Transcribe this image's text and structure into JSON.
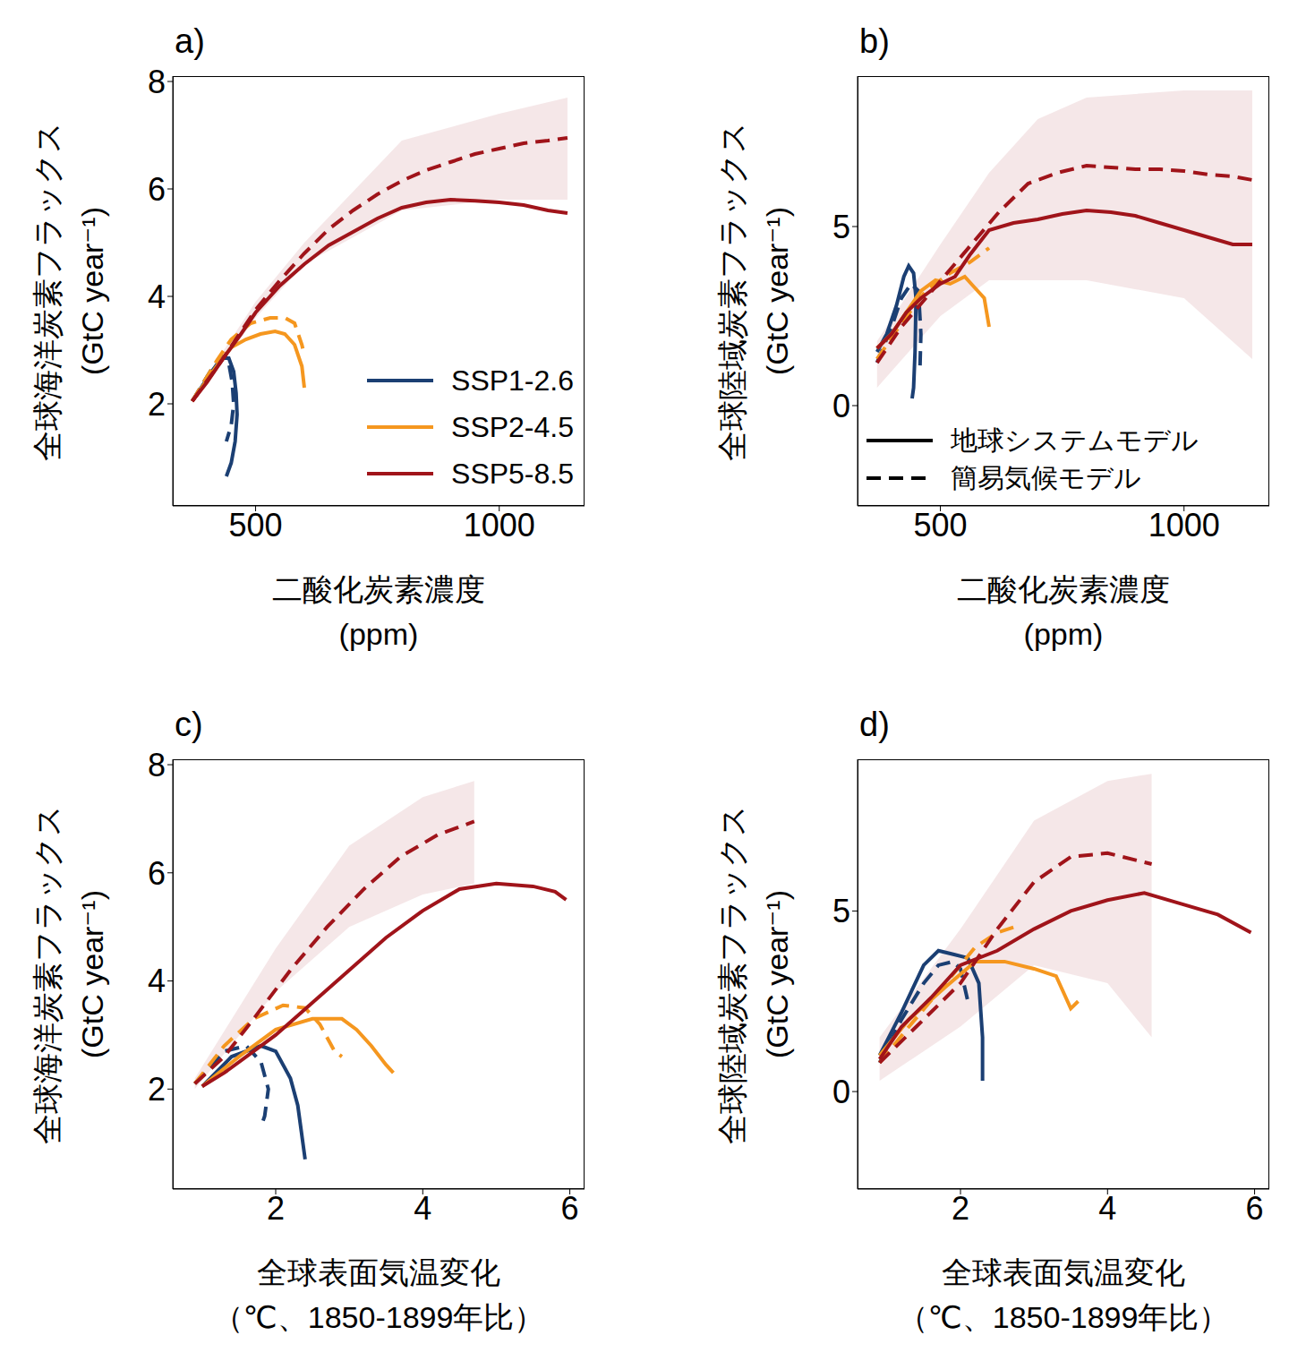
{
  "chart_data": [
    {
      "type": "line",
      "title": "a)",
      "xlabel": [
        "二酸化炭素濃度",
        "(ppm)"
      ],
      "ylabel": [
        "全球海洋炭素フラックス",
        "(GtC year⁻¹)"
      ],
      "xlim": [
        330,
        1175
      ],
      "ylim": [
        0.1,
        8.1
      ],
      "xticks": [
        500,
        1000
      ],
      "yticks": [
        2,
        4,
        6,
        8
      ],
      "legend": "lower right",
      "series": [
        {
          "name": "SSP1-2.6",
          "color": "#1b3f73",
          "line_style": "solid",
          "x": [
            370,
            410,
            430,
            445,
            455,
            460,
            462,
            458,
            450,
            440
          ],
          "values": [
            2.05,
            2.6,
            2.85,
            2.85,
            2.6,
            2.2,
            1.8,
            1.3,
            0.9,
            0.65
          ]
        },
        {
          "name": "SSP1-2.6",
          "color": "#1b3f73",
          "line_style": "dashed",
          "x": [
            370,
            410,
            430,
            445,
            452,
            455,
            450,
            440
          ],
          "values": [
            2.05,
            2.65,
            2.9,
            2.75,
            2.4,
            2.0,
            1.6,
            1.3
          ]
        },
        {
          "name": "SSP2-4.5",
          "color": "#f5971f",
          "line_style": "solid",
          "x": [
            370,
            420,
            450,
            480,
            510,
            540,
            560,
            580,
            595,
            600
          ],
          "values": [
            2.05,
            2.7,
            3.05,
            3.2,
            3.3,
            3.35,
            3.3,
            3.1,
            2.7,
            2.3
          ]
        },
        {
          "name": "SSP2-4.5",
          "color": "#f5971f",
          "line_style": "dashed",
          "x": [
            370,
            420,
            450,
            490,
            530,
            560,
            580,
            595,
            600
          ],
          "values": [
            2.05,
            2.8,
            3.2,
            3.5,
            3.6,
            3.6,
            3.5,
            3.1,
            2.9
          ]
        },
        {
          "name": "SSP5-8.5",
          "color": "#a0141a",
          "line_style": "solid",
          "x": [
            370,
            400,
            430,
            470,
            500,
            550,
            600,
            650,
            700,
            750,
            800,
            850,
            900,
            950,
            1000,
            1050,
            1100,
            1140
          ],
          "values": [
            2.05,
            2.4,
            2.8,
            3.3,
            3.7,
            4.2,
            4.6,
            4.95,
            5.2,
            5.45,
            5.65,
            5.75,
            5.8,
            5.78,
            5.75,
            5.7,
            5.6,
            5.55
          ]
        },
        {
          "name": "SSP5-8.5",
          "color": "#a0141a",
          "line_style": "dashed",
          "x": [
            370,
            430,
            500,
            550,
            600,
            650,
            700,
            750,
            800,
            850,
            900,
            950,
            1000,
            1050,
            1100,
            1140
          ],
          "values": [
            2.05,
            2.8,
            3.75,
            4.3,
            4.8,
            5.25,
            5.6,
            5.9,
            6.15,
            6.35,
            6.5,
            6.65,
            6.75,
            6.85,
            6.9,
            6.95
          ],
          "band_x": [
            370,
            500,
            600,
            800,
            1000,
            1140
          ],
          "band_low": [
            2.0,
            3.6,
            4.6,
            5.6,
            5.8,
            5.8
          ],
          "band_high": [
            2.1,
            3.9,
            5.0,
            6.9,
            7.4,
            7.7
          ]
        }
      ]
    },
    {
      "type": "line",
      "title": "b)",
      "xlabel": [
        "二酸化炭素濃度",
        "(ppm)"
      ],
      "ylabel": [
        "全球陸域炭素フラックス",
        "(GtC year⁻¹)"
      ],
      "xlim": [
        330,
        1175
      ],
      "ylim": [
        -2.8,
        9.2
      ],
      "xticks": [
        500,
        1000
      ],
      "yticks": [
        0,
        5
      ],
      "legend": "lower left",
      "series": [
        {
          "name": "SSP1-2.6",
          "model": "地球システムモデル",
          "color": "#1b3f73",
          "line_style": "solid",
          "x": [
            370,
            390,
            410,
            425,
            435,
            445,
            450,
            448,
            445,
            442
          ],
          "values": [
            1.5,
            2.0,
            2.8,
            3.6,
            3.9,
            3.7,
            3.0,
            1.5,
            0.5,
            0.2
          ]
        },
        {
          "name": "SSP1-2.6",
          "model": "簡易気候モデル",
          "color": "#1b3f73",
          "line_style": "dashed",
          "x": [
            370,
            400,
            420,
            440,
            455,
            460,
            458
          ],
          "values": [
            1.2,
            2.2,
            3.0,
            3.4,
            3.2,
            2.0,
            1.0
          ]
        },
        {
          "name": "SSP2-4.5",
          "model": "地球システムモデル",
          "color": "#f5971f",
          "line_style": "solid",
          "x": [
            370,
            400,
            430,
            460,
            490,
            520,
            550,
            570,
            590,
            600
          ],
          "values": [
            1.6,
            2.0,
            2.6,
            3.2,
            3.5,
            3.4,
            3.6,
            3.3,
            3.0,
            2.2
          ]
        },
        {
          "name": "SSP2-4.5",
          "model": "簡易気候モデル",
          "color": "#f5971f",
          "line_style": "dashed",
          "x": [
            370,
            420,
            470,
            520,
            560,
            600
          ],
          "values": [
            1.3,
            2.3,
            3.2,
            3.7,
            4.0,
            4.4
          ]
        },
        {
          "name": "SSP5-8.5",
          "model": "地球システムモデル",
          "color": "#a0141a",
          "line_style": "solid",
          "x": [
            370,
            400,
            430,
            460,
            500,
            530,
            560,
            600,
            650,
            700,
            750,
            800,
            850,
            900,
            950,
            1000,
            1050,
            1100,
            1140
          ],
          "values": [
            1.6,
            2.0,
            2.6,
            3.0,
            3.4,
            3.6,
            4.2,
            4.9,
            5.1,
            5.2,
            5.35,
            5.45,
            5.4,
            5.3,
            5.1,
            4.9,
            4.7,
            4.5,
            4.5
          ]
        },
        {
          "name": "SSP5-8.5",
          "model": "簡易気候モデル",
          "color": "#a0141a",
          "line_style": "dashed",
          "x": [
            370,
            420,
            470,
            520,
            570,
            620,
            680,
            740,
            800,
            850,
            900,
            950,
            1000,
            1050,
            1100,
            1140
          ],
          "values": [
            1.2,
            2.2,
            3.0,
            3.8,
            4.6,
            5.4,
            6.2,
            6.5,
            6.7,
            6.65,
            6.6,
            6.6,
            6.55,
            6.45,
            6.4,
            6.3
          ],
          "band_x": [
            370,
            500,
            600,
            700,
            800,
            1000,
            1140
          ],
          "band_low": [
            0.5,
            2.5,
            3.5,
            3.5,
            3.5,
            3.0,
            1.3
          ],
          "band_high": [
            1.8,
            4.5,
            6.5,
            8.0,
            8.6,
            8.8,
            8.8
          ]
        }
      ]
    },
    {
      "type": "line",
      "title": "c)",
      "xlabel": [
        "全球表面気温変化",
        "（℃、1850-1899年比）"
      ],
      "ylabel": [
        "全球海洋炭素フラックス",
        "(GtC year⁻¹)"
      ],
      "xlim": [
        0.6,
        6.2
      ],
      "ylim": [
        0.15,
        8.1
      ],
      "xticks": [
        2,
        4,
        6
      ],
      "yticks": [
        2,
        4,
        6,
        8
      ],
      "series": [
        {
          "name": "SSP1-2.6",
          "color": "#1b3f73",
          "line_style": "solid",
          "x": [
            1.0,
            1.4,
            1.8,
            2.0,
            2.2,
            2.3,
            2.35,
            2.4
          ],
          "values": [
            2.05,
            2.6,
            2.8,
            2.7,
            2.2,
            1.7,
            1.2,
            0.7
          ]
        },
        {
          "name": "SSP1-2.6",
          "color": "#1b3f73",
          "line_style": "dashed",
          "x": [
            0.9,
            1.3,
            1.6,
            1.8,
            1.9,
            1.85,
            1.8
          ],
          "values": [
            2.1,
            2.7,
            2.8,
            2.5,
            2.0,
            1.5,
            1.3
          ]
        },
        {
          "name": "SSP2-4.5",
          "color": "#f5971f",
          "line_style": "solid",
          "x": [
            1.0,
            1.5,
            2.0,
            2.5,
            2.9,
            3.1,
            3.3,
            3.5,
            3.6
          ],
          "values": [
            2.05,
            2.6,
            3.1,
            3.3,
            3.3,
            3.1,
            2.8,
            2.45,
            2.3
          ]
        },
        {
          "name": "SSP2-4.5",
          "color": "#f5971f",
          "line_style": "dashed",
          "x": [
            0.9,
            1.3,
            1.7,
            2.1,
            2.4,
            2.6,
            2.8,
            2.9
          ],
          "values": [
            2.1,
            2.8,
            3.3,
            3.55,
            3.5,
            3.2,
            2.7,
            2.6
          ]
        },
        {
          "name": "SSP5-8.5",
          "color": "#a0141a",
          "line_style": "solid",
          "x": [
            1.0,
            1.3,
            1.6,
            2.0,
            2.5,
            3.0,
            3.5,
            4.0,
            4.5,
            5.0,
            5.5,
            5.8,
            5.95
          ],
          "values": [
            2.05,
            2.3,
            2.6,
            3.0,
            3.6,
            4.2,
            4.8,
            5.3,
            5.7,
            5.8,
            5.75,
            5.65,
            5.5
          ]
        },
        {
          "name": "SSP5-8.5",
          "color": "#a0141a",
          "line_style": "dashed",
          "x": [
            0.9,
            1.3,
            1.7,
            2.2,
            2.7,
            3.2,
            3.7,
            4.2,
            4.7
          ],
          "values": [
            2.1,
            2.6,
            3.3,
            4.2,
            5.0,
            5.7,
            6.3,
            6.7,
            6.95
          ],
          "band_x": [
            0.9,
            2.0,
            3.0,
            4.0,
            4.7
          ],
          "band_low": [
            2.0,
            3.8,
            5.0,
            5.6,
            5.8
          ],
          "band_high": [
            2.2,
            4.6,
            6.5,
            7.4,
            7.7
          ]
        }
      ]
    },
    {
      "type": "line",
      "title": "d)",
      "xlabel": [
        "全球表面気温変化",
        "（℃、1850-1899年比）"
      ],
      "ylabel": [
        "全球陸域炭素フラックス",
        "(GtC year⁻¹)"
      ],
      "xlim": [
        0.6,
        6.2
      ],
      "ylim": [
        -2.7,
        9.2
      ],
      "xticks": [
        2,
        4,
        6
      ],
      "yticks": [
        0,
        5
      ],
      "series": [
        {
          "name": "SSP1-2.6",
          "color": "#1b3f73",
          "line_style": "solid",
          "x": [
            0.9,
            1.2,
            1.5,
            1.7,
            1.9,
            2.1,
            2.25,
            2.3,
            2.3
          ],
          "values": [
            1.0,
            2.2,
            3.5,
            3.9,
            3.8,
            3.7,
            3.0,
            1.5,
            0.3
          ]
        },
        {
          "name": "SSP1-2.6",
          "color": "#1b3f73",
          "line_style": "dashed",
          "x": [
            0.9,
            1.2,
            1.5,
            1.7,
            1.9,
            2.0,
            2.1
          ],
          "values": [
            0.8,
            2.0,
            3.0,
            3.5,
            3.6,
            3.4,
            2.5
          ]
        },
        {
          "name": "SSP2-4.5",
          "color": "#f5971f",
          "line_style": "solid",
          "x": [
            0.9,
            1.3,
            1.8,
            2.2,
            2.6,
            3.0,
            3.3,
            3.5,
            3.6
          ],
          "values": [
            1.0,
            2.0,
            2.9,
            3.6,
            3.6,
            3.4,
            3.2,
            2.3,
            2.5
          ]
        },
        {
          "name": "SSP2-4.5",
          "color": "#f5971f",
          "line_style": "dashed",
          "x": [
            0.9,
            1.3,
            1.8,
            2.2,
            2.5,
            2.8
          ],
          "values": [
            0.8,
            1.8,
            3.0,
            4.0,
            4.4,
            4.6
          ]
        },
        {
          "name": "SSP5-8.5",
          "color": "#a0141a",
          "line_style": "solid",
          "x": [
            0.9,
            1.2,
            1.6,
            2.0,
            2.5,
            3.0,
            3.5,
            4.0,
            4.5,
            5.0,
            5.5,
            5.95
          ],
          "values": [
            0.9,
            1.8,
            2.6,
            3.5,
            3.9,
            4.5,
            5.0,
            5.3,
            5.5,
            5.2,
            4.9,
            4.4
          ]
        },
        {
          "name": "SSP5-8.5",
          "color": "#a0141a",
          "line_style": "dashed",
          "x": [
            0.9,
            1.4,
            2.0,
            2.5,
            3.0,
            3.5,
            4.0,
            4.6
          ],
          "values": [
            0.8,
            1.8,
            3.0,
            4.5,
            5.8,
            6.5,
            6.6,
            6.3
          ],
          "band_x": [
            0.9,
            2.0,
            3.0,
            4.0,
            4.6
          ],
          "band_low": [
            0.3,
            1.8,
            3.5,
            3.0,
            1.5
          ],
          "band_high": [
            1.5,
            4.5,
            7.5,
            8.6,
            8.8
          ]
        }
      ]
    }
  ]
}
